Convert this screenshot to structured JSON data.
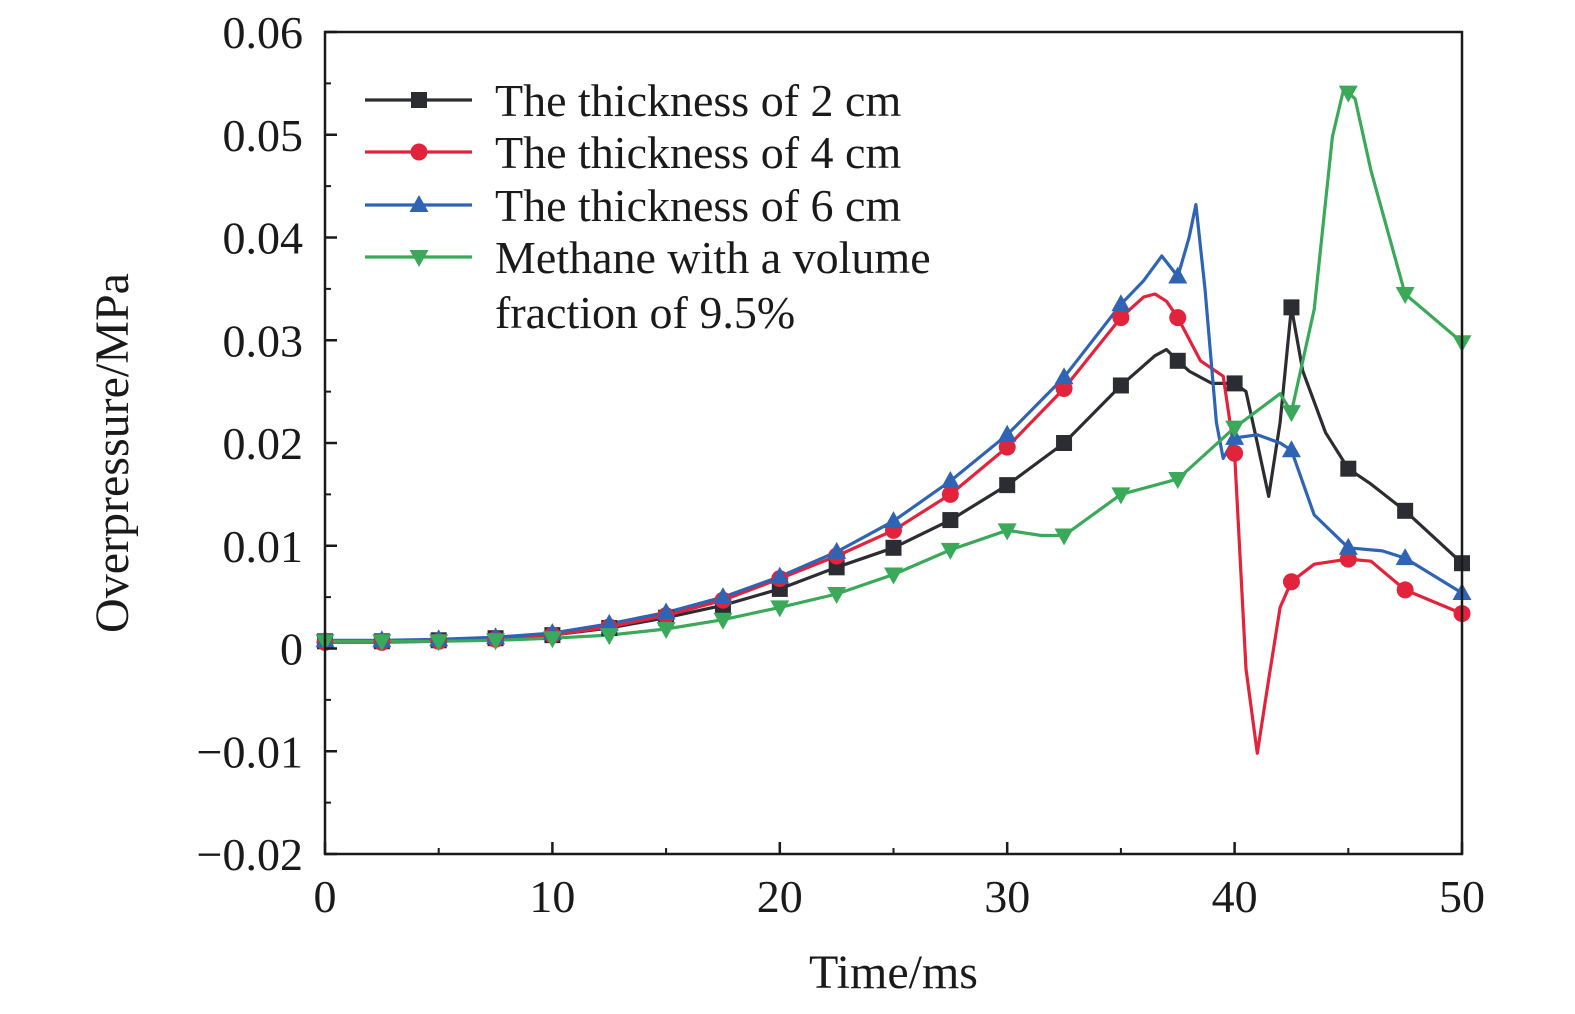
{
  "chart_data": {
    "type": "line",
    "title": "",
    "xlabel": "Time/ms",
    "ylabel": "Overpressure/MPa",
    "xlim": [
      0,
      50
    ],
    "ylim": [
      -0.02,
      0.06
    ],
    "xticks": [
      0,
      10,
      20,
      30,
      40,
      50
    ],
    "xtick_labels": [
      "0",
      "10",
      "20",
      "30",
      "40",
      "50"
    ],
    "yticks": [
      -0.02,
      -0.01,
      0,
      0.01,
      0.02,
      0.03,
      0.04,
      0.05,
      0.06
    ],
    "ytick_labels": [
      "−0.02",
      "−0.01",
      "0",
      "0.01",
      "0.02",
      "0.03",
      "0.04",
      "0.05",
      "0.06"
    ],
    "grid": false,
    "legend_position": "top-left",
    "series": [
      {
        "name": "The thickness of 2 cm",
        "color": "#2b2d33",
        "marker": "square",
        "x": [
          0,
          2.5,
          5,
          7.5,
          10,
          12.5,
          15,
          17.5,
          20,
          22.5,
          25,
          27.5,
          30,
          32.5,
          35,
          36.5,
          37,
          37.5,
          38,
          39,
          40,
          40.5,
          41,
          41.5,
          42,
          42.5,
          43,
          44,
          45,
          46,
          47.5,
          50
        ],
        "y": [
          0.0007,
          0.0007,
          0.0008,
          0.001,
          0.0013,
          0.002,
          0.003,
          0.0042,
          0.0058,
          0.0079,
          0.0098,
          0.0125,
          0.0159,
          0.02,
          0.0256,
          0.0285,
          0.0291,
          0.028,
          0.027,
          0.0258,
          0.0258,
          0.025,
          0.02,
          0.0148,
          0.022,
          0.0332,
          0.027,
          0.021,
          0.0175,
          0.016,
          0.0134,
          0.0083
        ],
        "markers_x": [
          0,
          2.5,
          5,
          7.5,
          10,
          12.5,
          15,
          17.5,
          20,
          22.5,
          25,
          27.5,
          30,
          32.5,
          35,
          37.5,
          40,
          42.5,
          45,
          47.5,
          50
        ]
      },
      {
        "name": "The thickness of 4 cm",
        "color": "#e3233b",
        "marker": "circle",
        "x": [
          0,
          2.5,
          5,
          7.5,
          10,
          12.5,
          15,
          17.5,
          20,
          22.5,
          25,
          27.5,
          30,
          32.5,
          35,
          36,
          36.5,
          37,
          37.5,
          38.5,
          39.5,
          40,
          40.5,
          41,
          41.5,
          42,
          42.5,
          43.5,
          45,
          46,
          47.5,
          50
        ],
        "y": [
          0.0006,
          0.0006,
          0.0007,
          0.0009,
          0.0013,
          0.0021,
          0.0032,
          0.0047,
          0.0068,
          0.009,
          0.0115,
          0.015,
          0.0196,
          0.0253,
          0.0322,
          0.0342,
          0.0345,
          0.0338,
          0.0322,
          0.028,
          0.0265,
          0.019,
          -0.002,
          -0.0102,
          -0.003,
          0.004,
          0.0065,
          0.0082,
          0.0087,
          0.0085,
          0.0057,
          0.0034
        ],
        "markers_x": [
          0,
          2.5,
          5,
          7.5,
          10,
          12.5,
          15,
          17.5,
          20,
          22.5,
          25,
          27.5,
          30,
          32.5,
          35,
          37.5,
          40,
          42.5,
          45,
          47.5,
          50
        ]
      },
      {
        "name": "The thickness of 6 cm",
        "color": "#2f64b5",
        "marker": "triangle-up",
        "x": [
          0,
          2.5,
          5,
          7.5,
          10,
          12.5,
          15,
          17.5,
          20,
          22.5,
          25,
          27.5,
          30,
          32.5,
          35,
          36,
          36.8,
          37.5,
          38,
          38.3,
          38.7,
          39.2,
          39.5,
          40,
          41,
          42,
          42.5,
          43.5,
          45,
          46.5,
          47.5,
          50
        ],
        "y": [
          0.0008,
          0.0008,
          0.0009,
          0.0011,
          0.0015,
          0.0024,
          0.0035,
          0.005,
          0.007,
          0.0094,
          0.0124,
          0.0163,
          0.0208,
          0.0264,
          0.0335,
          0.0358,
          0.0382,
          0.0362,
          0.04,
          0.0432,
          0.035,
          0.022,
          0.0185,
          0.0205,
          0.0208,
          0.02,
          0.0193,
          0.013,
          0.0098,
          0.0095,
          0.0088,
          0.0054
        ],
        "markers_x": [
          0,
          2.5,
          5,
          7.5,
          10,
          12.5,
          15,
          17.5,
          20,
          22.5,
          25,
          27.5,
          30,
          32.5,
          35,
          37.5,
          40,
          42.5,
          45,
          47.5,
          50
        ]
      },
      {
        "name": "Methane with a volume fraction of 9.5%",
        "color": "#3aa95a",
        "marker": "triangle-down",
        "x": [
          0,
          2.5,
          5,
          7.5,
          10,
          12.5,
          15,
          17.5,
          20,
          22.5,
          25,
          27.5,
          30,
          31.5,
          32.5,
          35,
          37.5,
          40,
          42,
          42.5,
          43.5,
          44.3,
          44.8,
          45.3,
          46,
          47.5,
          50
        ],
        "y": [
          0.0007,
          0.0007,
          0.0007,
          0.0008,
          0.001,
          0.0013,
          0.0019,
          0.0028,
          0.004,
          0.0053,
          0.0072,
          0.0096,
          0.0115,
          0.011,
          0.011,
          0.015,
          0.0165,
          0.0215,
          0.0248,
          0.023,
          0.033,
          0.0498,
          0.0545,
          0.0535,
          0.0465,
          0.0345,
          0.0298
        ],
        "markers_x": [
          0,
          2.5,
          5,
          7.5,
          10,
          12.5,
          15,
          17.5,
          20,
          22.5,
          25,
          27.5,
          30,
          32.5,
          35,
          37.5,
          40,
          42.5,
          45,
          47.5,
          50
        ]
      }
    ]
  }
}
